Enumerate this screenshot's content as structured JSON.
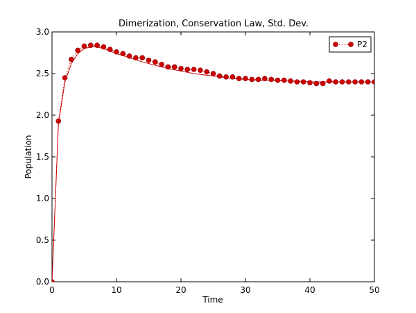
{
  "chart_data": {
    "type": "line",
    "title": "Dimerization, Conservation Law, Std. Dev.",
    "xlabel": "Time",
    "ylabel": "Population",
    "xlim": [
      0,
      50
    ],
    "ylim": [
      0,
      3.0
    ],
    "x_ticks": [
      "0",
      "10",
      "20",
      "30",
      "40",
      "50"
    ],
    "y_ticks": [
      "0.0",
      "0.5",
      "1.0",
      "1.5",
      "2.0",
      "2.5",
      "3.0"
    ],
    "grid": false,
    "legend_position": "top-right",
    "series": [
      {
        "name": "P2",
        "color": "#cc0000",
        "style": "dotted-with-markers",
        "x": [
          0,
          1,
          2,
          3,
          4,
          5,
          6,
          7,
          8,
          9,
          10,
          11,
          12,
          13,
          14,
          15,
          16,
          17,
          18,
          19,
          20,
          21,
          22,
          23,
          24,
          25,
          26,
          27,
          28,
          29,
          30,
          31,
          32,
          33,
          34,
          35,
          36,
          37,
          38,
          39,
          40,
          41,
          42,
          43,
          44,
          45,
          46,
          47,
          48,
          49,
          50
        ],
        "y": [
          0,
          1.93,
          2.45,
          2.67,
          2.78,
          2.83,
          2.84,
          2.84,
          2.82,
          2.79,
          2.76,
          2.74,
          2.71,
          2.69,
          2.69,
          2.66,
          2.64,
          2.61,
          2.58,
          2.58,
          2.56,
          2.55,
          2.55,
          2.54,
          2.52,
          2.5,
          2.47,
          2.46,
          2.46,
          2.44,
          2.44,
          2.43,
          2.43,
          2.44,
          2.43,
          2.42,
          2.42,
          2.41,
          2.4,
          2.4,
          2.39,
          2.38,
          2.38,
          2.41,
          2.4,
          2.4,
          2.4,
          2.4,
          2.4,
          2.4,
          2.4
        ]
      },
      {
        "name": "",
        "color": "#cc0000",
        "style": "solid",
        "x": [
          0,
          1,
          2,
          3,
          4,
          5,
          6,
          7,
          8,
          9,
          10,
          12,
          14,
          16,
          18,
          20,
          22,
          24,
          26,
          28,
          30,
          32,
          34,
          36,
          38,
          40,
          42,
          44,
          46,
          48,
          50
        ],
        "y": [
          0,
          1.9,
          2.4,
          2.62,
          2.74,
          2.8,
          2.82,
          2.82,
          2.8,
          2.77,
          2.74,
          2.69,
          2.64,
          2.6,
          2.56,
          2.53,
          2.5,
          2.48,
          2.46,
          2.44,
          2.43,
          2.42,
          2.42,
          2.41,
          2.41,
          2.4,
          2.4,
          2.4,
          2.4,
          2.4,
          2.4
        ]
      }
    ]
  }
}
